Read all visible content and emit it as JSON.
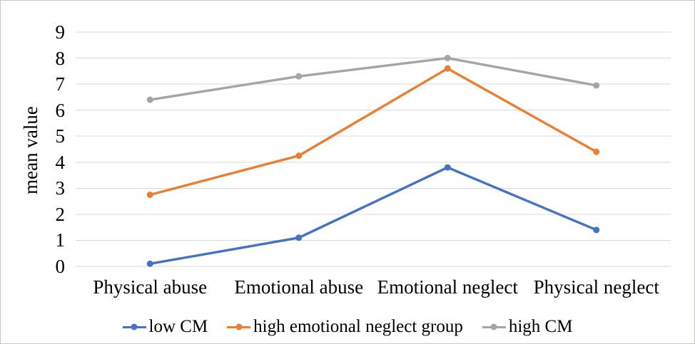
{
  "figure": {
    "background": "#FFFFFF",
    "border_color": "#CBC9C7"
  },
  "chart_data": {
    "type": "line",
    "title": "",
    "xlabel": "",
    "ylabel": "mean value",
    "categories": [
      "Physical abuse",
      "Emotional abuse",
      "Emotional neglect",
      "Physical neglect"
    ],
    "series": [
      {
        "name": "low CM",
        "color": "#4472C4",
        "values": [
          0.1,
          1.1,
          3.8,
          1.4
        ]
      },
      {
        "name": "high emotional neglect group",
        "color": "#ED7D31",
        "values": [
          2.75,
          4.25,
          7.6,
          4.4
        ]
      },
      {
        "name": "high CM",
        "color": "#A5A5A5",
        "values": [
          6.4,
          7.3,
          8.0,
          6.95
        ]
      }
    ],
    "ylim": [
      0,
      9
    ],
    "y_ticks": [
      0,
      1,
      2,
      3,
      4,
      5,
      6,
      7,
      8,
      9
    ],
    "grid": true,
    "gridline_color": "#D9D9D9",
    "marker": "circle",
    "legend_position": "bottom"
  }
}
